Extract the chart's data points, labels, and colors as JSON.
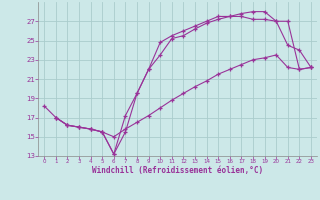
{
  "background_color": "#cce8e8",
  "grid_color": "#aacccc",
  "line_color": "#993399",
  "xlabel": "Windchill (Refroidissement éolien,°C)",
  "ylim": [
    13,
    29
  ],
  "xlim": [
    -0.5,
    23.5
  ],
  "yticks": [
    13,
    15,
    17,
    19,
    21,
    23,
    25,
    27
  ],
  "xticks": [
    0,
    1,
    2,
    3,
    4,
    5,
    6,
    7,
    8,
    9,
    10,
    11,
    12,
    13,
    14,
    15,
    16,
    17,
    18,
    19,
    20,
    21,
    22,
    23
  ],
  "series": [
    {
      "x": [
        0,
        1,
        2,
        3,
        4,
        5,
        6,
        7,
        8,
        9,
        10,
        11,
        12,
        13,
        14,
        15,
        16,
        17,
        18,
        19,
        20,
        21,
        22,
        23
      ],
      "y": [
        18.2,
        17.0,
        16.2,
        16.0,
        15.8,
        15.5,
        15.0,
        15.8,
        16.5,
        17.2,
        18.0,
        18.8,
        19.5,
        20.2,
        20.8,
        21.5,
        22.0,
        22.5,
        23.0,
        23.2,
        23.5,
        22.2,
        22.0,
        22.2
      ]
    },
    {
      "x": [
        1,
        2,
        3,
        4,
        5,
        6,
        7,
        8,
        9,
        10,
        11,
        12,
        13,
        14,
        15,
        16,
        17,
        18,
        19,
        20,
        21,
        22,
        23
      ],
      "y": [
        17.0,
        16.2,
        16.0,
        15.8,
        15.5,
        13.2,
        17.2,
        19.5,
        22.0,
        23.5,
        25.2,
        25.5,
        26.2,
        26.8,
        27.2,
        27.5,
        27.5,
        27.2,
        27.2,
        27.0,
        27.0,
        22.0,
        22.2
      ]
    },
    {
      "x": [
        1,
        2,
        3,
        4,
        5,
        6,
        7,
        8,
        9,
        10,
        11,
        12,
        13,
        14,
        15,
        16,
        17,
        18,
        19,
        20,
        21,
        22,
        23
      ],
      "y": [
        17.0,
        16.2,
        16.0,
        15.8,
        15.5,
        13.2,
        15.5,
        19.5,
        22.0,
        24.8,
        25.5,
        26.0,
        26.5,
        27.0,
        27.5,
        27.5,
        27.8,
        28.0,
        28.0,
        27.0,
        24.5,
        24.0,
        22.2
      ]
    }
  ]
}
